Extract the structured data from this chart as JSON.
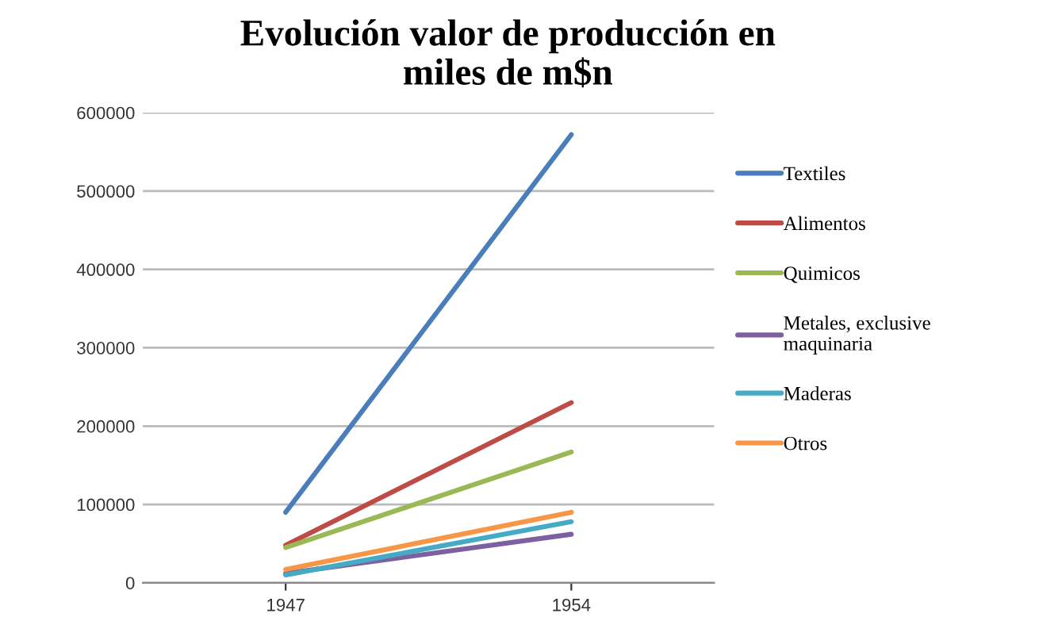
{
  "chart_data": {
    "type": "line",
    "title": "Evolución valor de producción en\nmiles de m$n",
    "categories": [
      "1947",
      "1954"
    ],
    "series": [
      {
        "name": "Textiles",
        "color": "#4a7ebb",
        "values": [
          90000,
          572000
        ]
      },
      {
        "name": "Alimentos",
        "color": "#be4b48",
        "values": [
          48000,
          230000
        ]
      },
      {
        "name": "Quimicos",
        "color": "#98b954",
        "values": [
          45000,
          167000
        ]
      },
      {
        "name": "Metales, exclusive\nmaquinaria",
        "color": "#7d60a0",
        "values": [
          12000,
          62000
        ]
      },
      {
        "name": "Maderas",
        "color": "#46aac5",
        "values": [
          10000,
          78000
        ]
      },
      {
        "name": "Otros",
        "color": "#f79646",
        "values": [
          17000,
          90000
        ]
      }
    ],
    "ylim": [
      0,
      600000
    ],
    "yticks": [
      0,
      100000,
      200000,
      300000,
      400000,
      500000,
      600000
    ],
    "grid": "y",
    "legend": "right",
    "marker": "none"
  }
}
